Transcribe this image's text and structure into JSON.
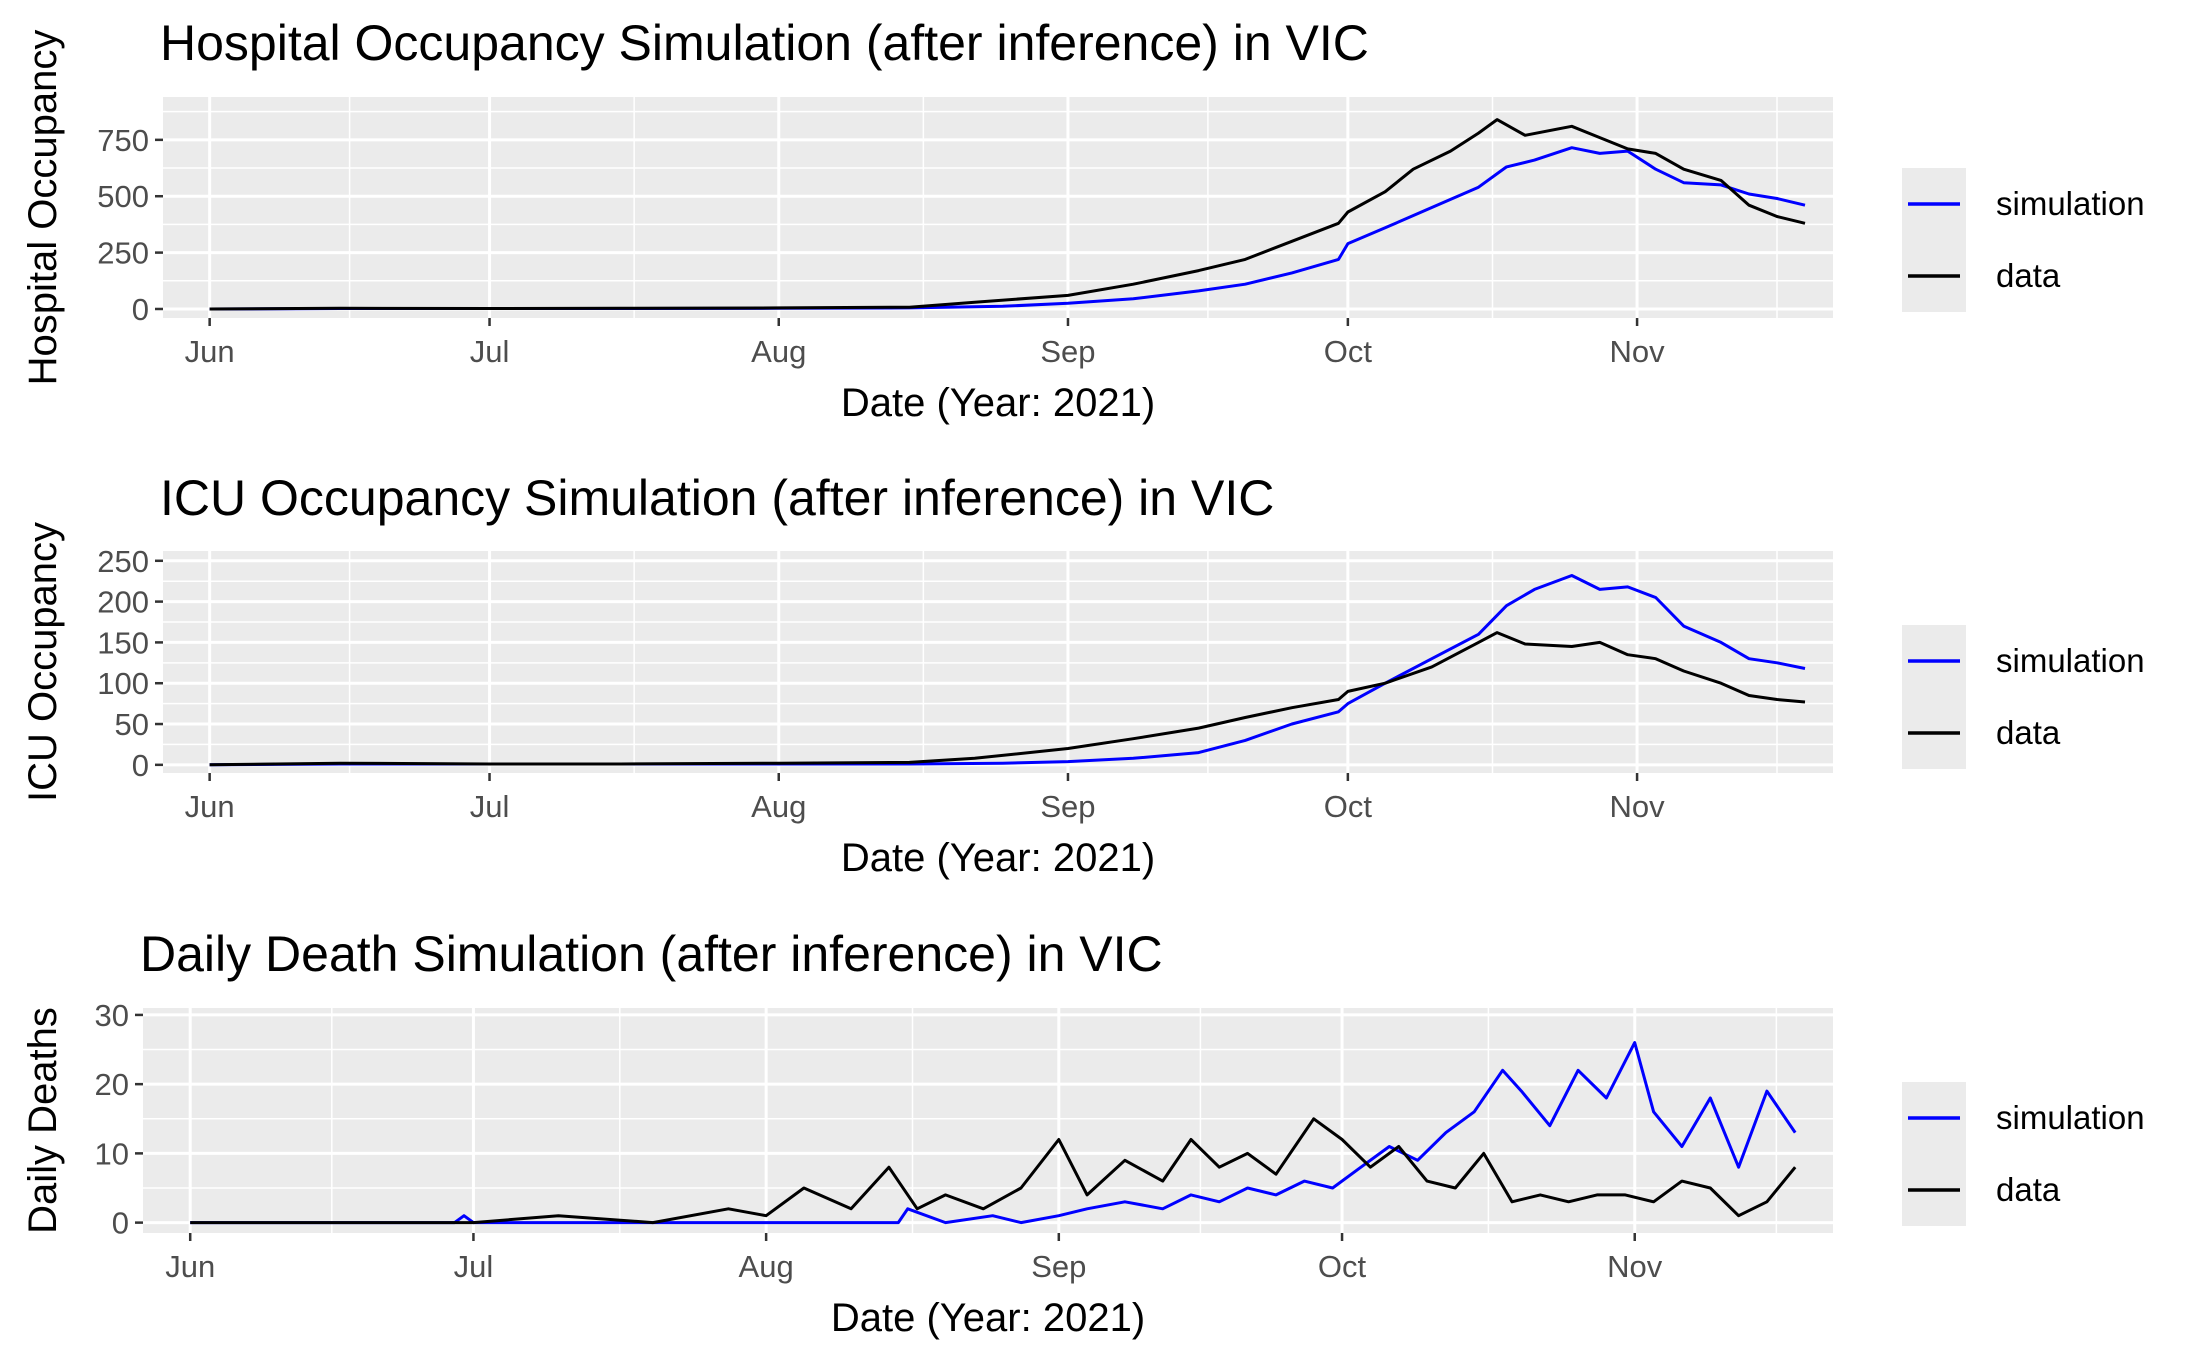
{
  "chart_data": [
    {
      "type": "line",
      "title": "Hospital Occupancy Simulation (after inference) in VIC",
      "xlabel": "Date (Year: 2021)",
      "ylabel": "Hospital Occupancy",
      "x_ticks": [
        "Jun",
        "Jul",
        "Aug",
        "Sep",
        "Oct",
        "Nov"
      ],
      "y_ticks": [
        0,
        250,
        500,
        750
      ],
      "ylim": [
        -40,
        940
      ],
      "xlim": [
        "2021-05-27",
        "2021-11-22"
      ],
      "grid": true,
      "legend_position": "right",
      "series": [
        {
          "name": "simulation",
          "color": "#0000ff",
          "points": [
            [
              "2021-06-01",
              0
            ],
            [
              "2021-06-15",
              2
            ],
            [
              "2021-07-01",
              2
            ],
            [
              "2021-07-15",
              2
            ],
            [
              "2021-08-01",
              3
            ],
            [
              "2021-08-15",
              5
            ],
            [
              "2021-08-25",
              12
            ],
            [
              "2021-09-01",
              25
            ],
            [
              "2021-09-08",
              45
            ],
            [
              "2021-09-15",
              80
            ],
            [
              "2021-09-20",
              110
            ],
            [
              "2021-09-25",
              160
            ],
            [
              "2021-09-30",
              220
            ],
            [
              "2021-10-01",
              290
            ],
            [
              "2021-10-05",
              360
            ],
            [
              "2021-10-10",
              450
            ],
            [
              "2021-10-15",
              540
            ],
            [
              "2021-10-18",
              630
            ],
            [
              "2021-10-21",
              660
            ],
            [
              "2021-10-25",
              715
            ],
            [
              "2021-10-28",
              690
            ],
            [
              "2021-10-31",
              700
            ],
            [
              "2021-11-03",
              620
            ],
            [
              "2021-11-06",
              560
            ],
            [
              "2021-11-10",
              550
            ],
            [
              "2021-11-13",
              510
            ],
            [
              "2021-11-16",
              490
            ],
            [
              "2021-11-19",
              460
            ]
          ]
        },
        {
          "name": "data",
          "color": "#000000",
          "points": [
            [
              "2021-06-01",
              0
            ],
            [
              "2021-06-15",
              3
            ],
            [
              "2021-07-01",
              2
            ],
            [
              "2021-07-15",
              3
            ],
            [
              "2021-08-01",
              5
            ],
            [
              "2021-08-15",
              8
            ],
            [
              "2021-08-22",
              30
            ],
            [
              "2021-09-01",
              60
            ],
            [
              "2021-09-08",
              110
            ],
            [
              "2021-09-15",
              170
            ],
            [
              "2021-09-20",
              220
            ],
            [
              "2021-09-25",
              300
            ],
            [
              "2021-09-30",
              380
            ],
            [
              "2021-10-01",
              430
            ],
            [
              "2021-10-05",
              520
            ],
            [
              "2021-10-08",
              620
            ],
            [
              "2021-10-12",
              700
            ],
            [
              "2021-10-15",
              780
            ],
            [
              "2021-10-17",
              840
            ],
            [
              "2021-10-20",
              770
            ],
            [
              "2021-10-25",
              810
            ],
            [
              "2021-10-28",
              760
            ],
            [
              "2021-10-31",
              710
            ],
            [
              "2021-11-03",
              690
            ],
            [
              "2021-11-06",
              620
            ],
            [
              "2021-11-10",
              570
            ],
            [
              "2021-11-13",
              460
            ],
            [
              "2021-11-16",
              410
            ],
            [
              "2021-11-19",
              380
            ]
          ]
        }
      ]
    },
    {
      "type": "line",
      "title": "ICU Occupancy Simulation (after inference) in VIC",
      "xlabel": "Date (Year: 2021)",
      "ylabel": "ICU Occupancy",
      "x_ticks": [
        "Jun",
        "Jul",
        "Aug",
        "Sep",
        "Oct",
        "Nov"
      ],
      "y_ticks": [
        0,
        50,
        100,
        150,
        200,
        250
      ],
      "ylim": [
        -10,
        262
      ],
      "xlim": [
        "2021-05-27",
        "2021-11-22"
      ],
      "grid": true,
      "legend_position": "right",
      "series": [
        {
          "name": "simulation",
          "color": "#0000ff",
          "points": [
            [
              "2021-06-01",
              0
            ],
            [
              "2021-06-15",
              1
            ],
            [
              "2021-07-01",
              1
            ],
            [
              "2021-07-15",
              1
            ],
            [
              "2021-08-01",
              1
            ],
            [
              "2021-08-15",
              1
            ],
            [
              "2021-08-25",
              2
            ],
            [
              "2021-09-01",
              4
            ],
            [
              "2021-09-08",
              8
            ],
            [
              "2021-09-15",
              15
            ],
            [
              "2021-09-20",
              30
            ],
            [
              "2021-09-25",
              50
            ],
            [
              "2021-09-30",
              65
            ],
            [
              "2021-10-01",
              75
            ],
            [
              "2021-10-05",
              100
            ],
            [
              "2021-10-10",
              130
            ],
            [
              "2021-10-15",
              160
            ],
            [
              "2021-10-18",
              195
            ],
            [
              "2021-10-21",
              215
            ],
            [
              "2021-10-25",
              232
            ],
            [
              "2021-10-28",
              215
            ],
            [
              "2021-10-31",
              218
            ],
            [
              "2021-11-03",
              205
            ],
            [
              "2021-11-06",
              170
            ],
            [
              "2021-11-10",
              150
            ],
            [
              "2021-11-13",
              130
            ],
            [
              "2021-11-16",
              125
            ],
            [
              "2021-11-19",
              118
            ]
          ]
        },
        {
          "name": "data",
          "color": "#000000",
          "points": [
            [
              "2021-06-01",
              0
            ],
            [
              "2021-06-15",
              2
            ],
            [
              "2021-07-01",
              1
            ],
            [
              "2021-07-15",
              1
            ],
            [
              "2021-08-01",
              2
            ],
            [
              "2021-08-15",
              3
            ],
            [
              "2021-08-22",
              8
            ],
            [
              "2021-09-01",
              20
            ],
            [
              "2021-09-08",
              32
            ],
            [
              "2021-09-15",
              45
            ],
            [
              "2021-09-20",
              58
            ],
            [
              "2021-09-25",
              70
            ],
            [
              "2021-09-30",
              80
            ],
            [
              "2021-10-01",
              90
            ],
            [
              "2021-10-05",
              100
            ],
            [
              "2021-10-10",
              120
            ],
            [
              "2021-10-15",
              150
            ],
            [
              "2021-10-17",
              162
            ],
            [
              "2021-10-20",
              148
            ],
            [
              "2021-10-25",
              145
            ],
            [
              "2021-10-28",
              150
            ],
            [
              "2021-10-31",
              135
            ],
            [
              "2021-11-03",
              130
            ],
            [
              "2021-11-06",
              115
            ],
            [
              "2021-11-10",
              100
            ],
            [
              "2021-11-13",
              85
            ],
            [
              "2021-11-16",
              80
            ],
            [
              "2021-11-19",
              77
            ]
          ]
        }
      ]
    },
    {
      "type": "line",
      "title": "Daily Death Simulation (after inference) in VIC",
      "xlabel": "Date (Year: 2021)",
      "ylabel": "Daily Deaths",
      "x_ticks": [
        "Jun",
        "Jul",
        "Aug",
        "Sep",
        "Oct",
        "Nov"
      ],
      "y_ticks": [
        0,
        10,
        20,
        30
      ],
      "ylim": [
        -1.5,
        31
      ],
      "xlim": [
        "2021-05-27",
        "2021-11-22"
      ],
      "grid": true,
      "legend_position": "right",
      "series": [
        {
          "name": "simulation",
          "color": "#0000ff",
          "points": [
            [
              "2021-06-01",
              0
            ],
            [
              "2021-06-29",
              0
            ],
            [
              "2021-06-30",
              1
            ],
            [
              "2021-07-01",
              0
            ],
            [
              "2021-08-01",
              0
            ],
            [
              "2021-08-15",
              0
            ],
            [
              "2021-08-16",
              2
            ],
            [
              "2021-08-20",
              0
            ],
            [
              "2021-08-25",
              1
            ],
            [
              "2021-08-28",
              0
            ],
            [
              "2021-09-01",
              1
            ],
            [
              "2021-09-04",
              2
            ],
            [
              "2021-09-08",
              3
            ],
            [
              "2021-09-12",
              2
            ],
            [
              "2021-09-15",
              4
            ],
            [
              "2021-09-18",
              3
            ],
            [
              "2021-09-21",
              5
            ],
            [
              "2021-09-24",
              4
            ],
            [
              "2021-09-27",
              6
            ],
            [
              "2021-09-30",
              5
            ],
            [
              "2021-10-03",
              8
            ],
            [
              "2021-10-06",
              11
            ],
            [
              "2021-10-09",
              9
            ],
            [
              "2021-10-12",
              13
            ],
            [
              "2021-10-15",
              16
            ],
            [
              "2021-10-18",
              22
            ],
            [
              "2021-10-20",
              19
            ],
            [
              "2021-10-23",
              14
            ],
            [
              "2021-10-26",
              22
            ],
            [
              "2021-10-29",
              18
            ],
            [
              "2021-11-01",
              26
            ],
            [
              "2021-11-03",
              16
            ],
            [
              "2021-11-06",
              11
            ],
            [
              "2021-11-09",
              18
            ],
            [
              "2021-11-12",
              8
            ],
            [
              "2021-11-15",
              19
            ],
            [
              "2021-11-18",
              13
            ]
          ]
        },
        {
          "name": "data",
          "color": "#000000",
          "points": [
            [
              "2021-06-01",
              0
            ],
            [
              "2021-07-01",
              0
            ],
            [
              "2021-07-10",
              1
            ],
            [
              "2021-07-20",
              0
            ],
            [
              "2021-07-28",
              2
            ],
            [
              "2021-08-01",
              1
            ],
            [
              "2021-08-05",
              5
            ],
            [
              "2021-08-10",
              2
            ],
            [
              "2021-08-14",
              8
            ],
            [
              "2021-08-17",
              2
            ],
            [
              "2021-08-20",
              4
            ],
            [
              "2021-08-24",
              2
            ],
            [
              "2021-08-28",
              5
            ],
            [
              "2021-09-01",
              12
            ],
            [
              "2021-09-04",
              4
            ],
            [
              "2021-09-08",
              9
            ],
            [
              "2021-09-12",
              6
            ],
            [
              "2021-09-15",
              12
            ],
            [
              "2021-09-18",
              8
            ],
            [
              "2021-09-21",
              10
            ],
            [
              "2021-09-24",
              7
            ],
            [
              "2021-09-28",
              15
            ],
            [
              "2021-10-01",
              12
            ],
            [
              "2021-10-04",
              8
            ],
            [
              "2021-10-07",
              11
            ],
            [
              "2021-10-10",
              6
            ],
            [
              "2021-10-13",
              5
            ],
            [
              "2021-10-16",
              10
            ],
            [
              "2021-10-19",
              3
            ],
            [
              "2021-10-22",
              4
            ],
            [
              "2021-10-25",
              3
            ],
            [
              "2021-10-28",
              4
            ],
            [
              "2021-10-31",
              4
            ],
            [
              "2021-11-03",
              3
            ],
            [
              "2021-11-06",
              6
            ],
            [
              "2021-11-09",
              5
            ],
            [
              "2021-11-12",
              1
            ],
            [
              "2021-11-15",
              3
            ],
            [
              "2021-11-18",
              8
            ]
          ]
        }
      ]
    }
  ]
}
